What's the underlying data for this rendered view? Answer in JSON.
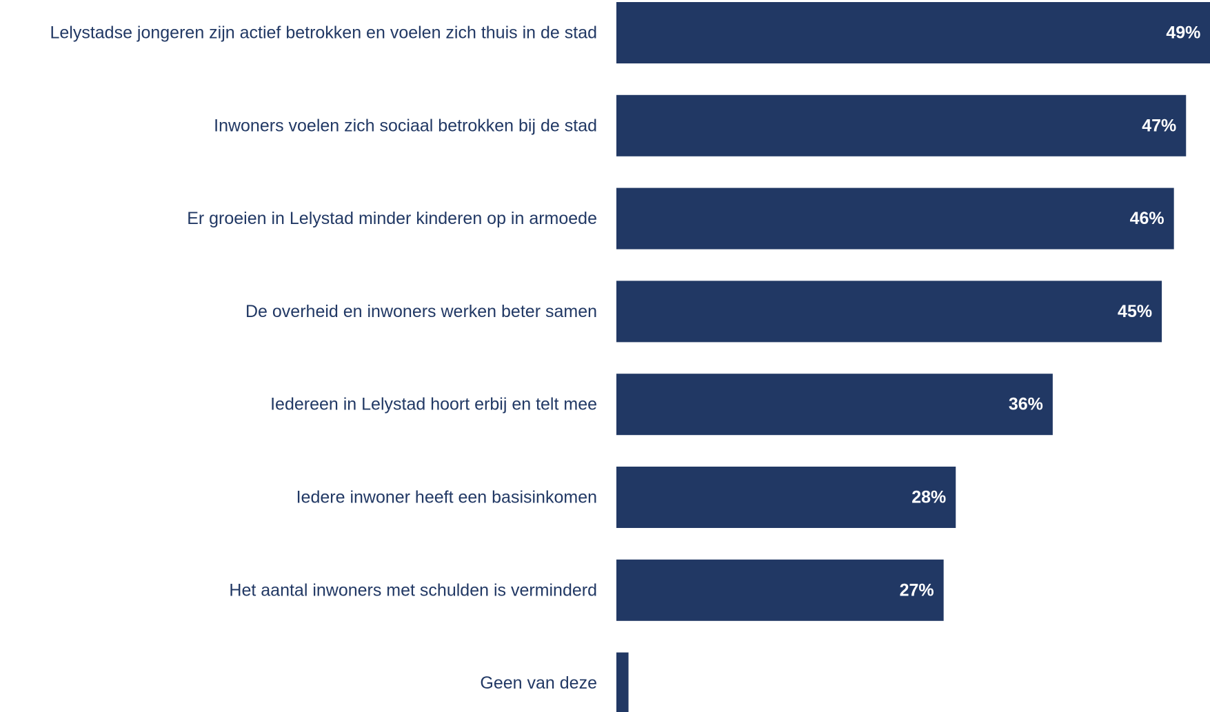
{
  "chart_data": {
    "type": "bar",
    "orientation": "horizontal",
    "categories": [
      "Lelystadse jongeren zijn actief betrokken en voelen zich thuis in de stad",
      "Inwoners voelen zich sociaal betrokken bij de stad",
      "Er groeien in Lelystad minder kinderen op in armoede",
      "De overheid en inwoners werken beter samen",
      "Iedereen in Lelystad hoort erbij en telt mee",
      "Iedere inwoner heeft een basisinkomen",
      "Het aantal inwoners met schulden is verminderd",
      "Geen van deze"
    ],
    "values": [
      49,
      47,
      46,
      45,
      36,
      28,
      27,
      1
    ],
    "value_labels": [
      "49%",
      "47%",
      "46%",
      "45%",
      "36%",
      "28%",
      "27%",
      ""
    ],
    "unit": "%",
    "title": "",
    "xlabel": "",
    "ylabel": "",
    "grid": false,
    "legend": "none"
  },
  "colors": {
    "bar": "#213864",
    "category_text": "#213864",
    "value_text": "#ffffff",
    "background": "#ffffff"
  }
}
